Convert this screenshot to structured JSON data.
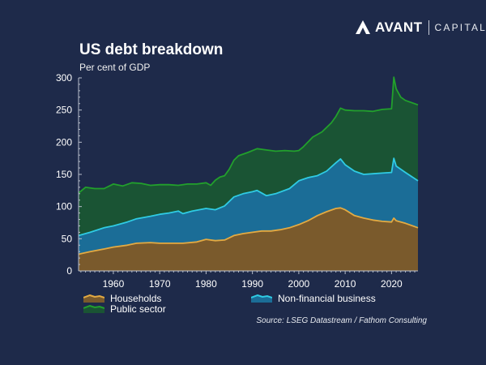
{
  "brand": {
    "name": "AVANT",
    "sub": "CAPITAL",
    "icon": "avant-logo-icon"
  },
  "chart_data": {
    "type": "area",
    "stacked": true,
    "title": "US debt breakdown",
    "subtitle": "Per cent of GDP",
    "xlabel": "",
    "ylabel": "Per cent of GDP",
    "xlim": [
      1952.5,
      2025.7
    ],
    "ylim": [
      0,
      300
    ],
    "yticks": [
      0,
      50,
      100,
      150,
      200,
      250,
      300
    ],
    "ytick_labels": [
      "0",
      "50",
      "100",
      "150",
      "200",
      "250",
      "300"
    ],
    "xticks": [
      1960,
      1970,
      1980,
      1990,
      2000,
      2010,
      2020
    ],
    "xtick_labels": [
      "1960",
      "1970",
      "1980",
      "1990",
      "2000",
      "2010",
      "2020"
    ],
    "grid": false,
    "legend_position": "bottom",
    "note": "Series values are cumulative stack tops (per cent of GDP)",
    "series": [
      {
        "name": "Households",
        "fill": "#7a5a2c",
        "line": "#e3aa42",
        "x": [
          1952.5,
          1955,
          1958,
          1960,
          1963,
          1965,
          1968,
          1970,
          1972,
          1975,
          1978,
          1980,
          1982,
          1984,
          1986,
          1988,
          1990,
          1992,
          1994,
          1996,
          1998,
          2000,
          2002,
          2004,
          2006,
          2008,
          2009,
          2010,
          2012,
          2014,
          2016,
          2018,
          2020,
          2020.5,
          2021,
          2023,
          2025.7
        ],
        "values": [
          26,
          30,
          34,
          37,
          40,
          43,
          44,
          43,
          43,
          43,
          45,
          49,
          47,
          48,
          55,
          58,
          60,
          62,
          62,
          64,
          67,
          72,
          78,
          86,
          92,
          97,
          98,
          95,
          86,
          82,
          79,
          77,
          76,
          82,
          78,
          74,
          67
        ]
      },
      {
        "name": "Non-financial business",
        "fill": "#1b6d97",
        "line": "#2fcbe3",
        "x": [
          1952.5,
          1955,
          1958,
          1960,
          1963,
          1965,
          1968,
          1970,
          1972,
          1974,
          1975,
          1977,
          1980,
          1982,
          1984,
          1986,
          1988,
          1990,
          1991,
          1993,
          1995,
          1998,
          2000,
          2002,
          2004,
          2006,
          2008,
          2009,
          2010,
          2012,
          2014,
          2016,
          2018,
          2020,
          2020.5,
          2021,
          2023,
          2025.7
        ],
        "values": [
          55,
          60,
          67,
          70,
          76,
          81,
          85,
          88,
          90,
          93,
          89,
          93,
          97,
          95,
          101,
          115,
          120,
          123,
          125,
          117,
          120,
          128,
          140,
          145,
          148,
          155,
          168,
          174,
          165,
          155,
          150,
          151,
          152,
          153,
          175,
          163,
          153,
          140
        ]
      },
      {
        "name": "Public sector",
        "fill": "#1a5434",
        "line": "#22a02c",
        "x": [
          1952.5,
          1954,
          1956,
          1958,
          1960,
          1962,
          1964,
          1966,
          1968,
          1970,
          1972,
          1974,
          1976,
          1978,
          1980,
          1981,
          1982,
          1983,
          1984,
          1985,
          1986,
          1987,
          1989,
          1991,
          1993,
          1995,
          1997,
          1999,
          2000,
          2001,
          2003,
          2005,
          2007,
          2008,
          2009,
          2010,
          2012,
          2014,
          2016,
          2018,
          2020,
          2020.5,
          2021,
          2022,
          2023,
          2025.7
        ],
        "values": [
          121,
          130,
          128,
          128,
          135,
          132,
          137,
          136,
          133,
          134,
          134,
          133,
          135,
          135,
          137,
          133,
          141,
          146,
          148,
          158,
          172,
          179,
          184,
          190,
          188,
          186,
          187,
          186,
          187,
          193,
          208,
          216,
          230,
          240,
          253,
          250,
          249,
          249,
          248,
          251,
          252,
          301,
          283,
          270,
          265,
          258
        ]
      }
    ],
    "legend": [
      {
        "name": "Households"
      },
      {
        "name": "Non-financial business"
      },
      {
        "name": "Public sector"
      }
    ],
    "source": "Source: LSEG Datastream / Fathom Consulting"
  }
}
